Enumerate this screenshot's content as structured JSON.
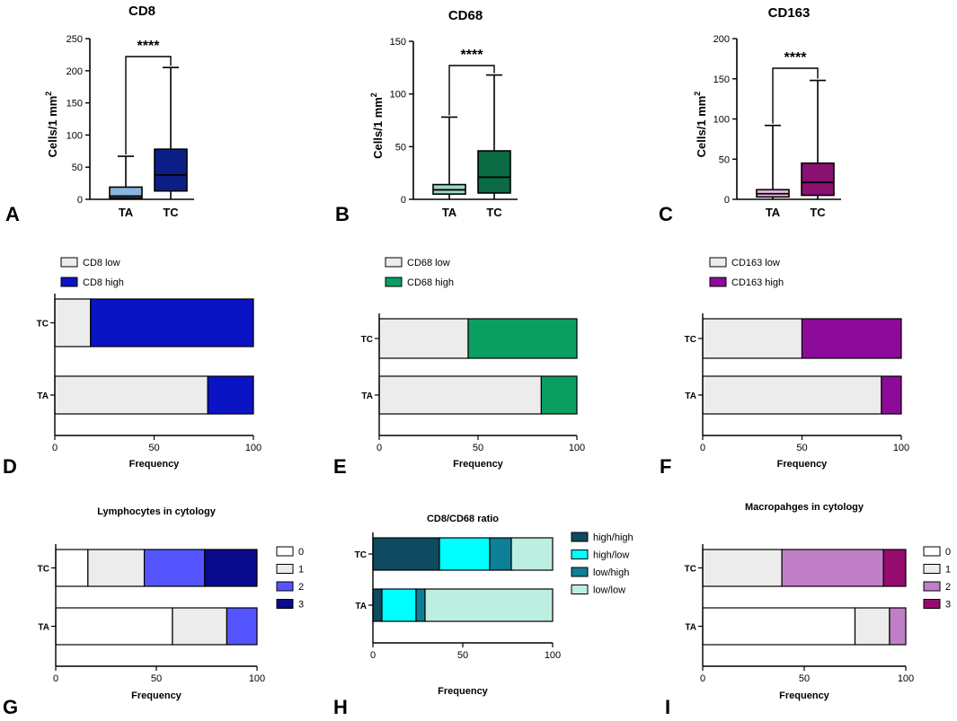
{
  "chart_data": [
    {
      "panel": "A",
      "type": "box",
      "title": "CD8",
      "ylabel": "Cells/1 mm",
      "ylabel_sup": "2",
      "ylim": [
        0,
        250
      ],
      "yticks": [
        0,
        50,
        100,
        150,
        200,
        250
      ],
      "categories": [
        "TA",
        "TC"
      ],
      "boxes": [
        {
          "category": "TA",
          "min": 0,
          "q1": 2,
          "median": 5,
          "q3": 19,
          "max": 67,
          "color": "#8ab3df"
        },
        {
          "category": "TC",
          "min": 0,
          "q1": 13,
          "median": 38,
          "q3": 78,
          "max": 205,
          "color": "#0c1f86"
        }
      ],
      "significance": "****"
    },
    {
      "panel": "B",
      "type": "box",
      "title": "CD68",
      "ylabel": "Cells/1 mm",
      "ylabel_sup": "2",
      "ylim": [
        0,
        150
      ],
      "yticks": [
        0,
        50,
        100,
        150
      ],
      "categories": [
        "TA",
        "TC"
      ],
      "boxes": [
        {
          "category": "TA",
          "min": 0,
          "q1": 5,
          "median": 9,
          "q3": 14,
          "max": 78,
          "color": "#9fd9c7"
        },
        {
          "category": "TC",
          "min": 0,
          "q1": 6,
          "median": 21,
          "q3": 46,
          "max": 118,
          "color": "#0a6b45"
        }
      ],
      "significance": "****"
    },
    {
      "panel": "C",
      "type": "box",
      "title": "CD163",
      "ylabel": "Cells/1 mm",
      "ylabel_sup": "2",
      "ylim": [
        0,
        200
      ],
      "yticks": [
        0,
        50,
        100,
        150,
        200
      ],
      "categories": [
        "TA",
        "TC"
      ],
      "boxes": [
        {
          "category": "TA",
          "min": 0,
          "q1": 3,
          "median": 7,
          "q3": 12,
          "max": 92,
          "color": "#e8b6e3"
        },
        {
          "category": "TC",
          "min": 0,
          "q1": 5,
          "median": 21,
          "q3": 45,
          "max": 148,
          "color": "#8a1072"
        }
      ],
      "significance": "****"
    },
    {
      "panel": "D",
      "type": "stacked-bar-horizontal",
      "title": "",
      "xlabel": "Frequency",
      "xlim": [
        0,
        100
      ],
      "xticks": [
        0,
        50,
        100
      ],
      "categories": [
        "TC",
        "TA"
      ],
      "series": [
        {
          "name": "CD8 low",
          "color": "#ececec",
          "values": [
            18,
            77
          ]
        },
        {
          "name": "CD8 high",
          "color": "#0a14c4",
          "values": [
            82,
            23
          ]
        }
      ]
    },
    {
      "panel": "E",
      "type": "stacked-bar-horizontal",
      "title": "",
      "xlabel": "Frequency",
      "xlim": [
        0,
        100
      ],
      "xticks": [
        0,
        50,
        100
      ],
      "categories": [
        "TC",
        "TA"
      ],
      "series": [
        {
          "name": "CD68 low",
          "color": "#ececec",
          "values": [
            45,
            82
          ]
        },
        {
          "name": "CD68 high",
          "color": "#0b9e61",
          "values": [
            55,
            18
          ]
        }
      ]
    },
    {
      "panel": "F",
      "type": "stacked-bar-horizontal",
      "title": "",
      "xlabel": "Frequency",
      "xlim": [
        0,
        100
      ],
      "xticks": [
        0,
        50,
        100
      ],
      "categories": [
        "TC",
        "TA"
      ],
      "series": [
        {
          "name": "CD163 low",
          "color": "#ececec",
          "values": [
            50,
            90
          ]
        },
        {
          "name": "CD163 high",
          "color": "#8d0b99",
          "values": [
            50,
            10
          ]
        }
      ]
    },
    {
      "panel": "G",
      "type": "stacked-bar-horizontal",
      "title": "Lymphocytes in cytology",
      "xlabel": "Frequency",
      "xlim": [
        0,
        100
      ],
      "xticks": [
        0,
        50,
        100
      ],
      "categories": [
        "TC",
        "TA"
      ],
      "series": [
        {
          "name": "0",
          "color": "#ffffff",
          "values": [
            16,
            58
          ]
        },
        {
          "name": "1",
          "color": "#ececec",
          "values": [
            28,
            27
          ]
        },
        {
          "name": "2",
          "color": "#5555ff",
          "values": [
            30,
            15
          ]
        },
        {
          "name": "3",
          "color": "#0a0a8c",
          "values": [
            26,
            0
          ]
        }
      ]
    },
    {
      "panel": "H",
      "type": "stacked-bar-horizontal",
      "title": "CD8/CD68 ratio",
      "xlabel": "Frequency",
      "xlim": [
        0,
        100
      ],
      "xticks": [
        0,
        50,
        100
      ],
      "categories": [
        "TC",
        "TA"
      ],
      "series": [
        {
          "name": "high/high",
          "color": "#0e4b60",
          "values": [
            37,
            5
          ]
        },
        {
          "name": "high/low",
          "color": "#00ffff",
          "values": [
            28,
            19
          ]
        },
        {
          "name": "low/high",
          "color": "#0d7f96",
          "values": [
            12,
            5
          ]
        },
        {
          "name": "low/low",
          "color": "#bdeee2",
          "values": [
            23,
            71
          ]
        }
      ]
    },
    {
      "panel": "I",
      "type": "stacked-bar-horizontal",
      "title": "Macropahges in cytology",
      "xlabel": "Frequency",
      "xlim": [
        0,
        100
      ],
      "xticks": [
        0,
        50,
        100
      ],
      "categories": [
        "TC",
        "TA"
      ],
      "series": [
        {
          "name": "0",
          "color": "#ffffff",
          "values": [
            0,
            75
          ]
        },
        {
          "name": "1",
          "color": "#ececec",
          "values": [
            39,
            17
          ]
        },
        {
          "name": "2",
          "color": "#c07fc7",
          "values": [
            50,
            8
          ]
        },
        {
          "name": "3",
          "color": "#960c6e",
          "values": [
            11,
            0
          ]
        }
      ]
    }
  ]
}
